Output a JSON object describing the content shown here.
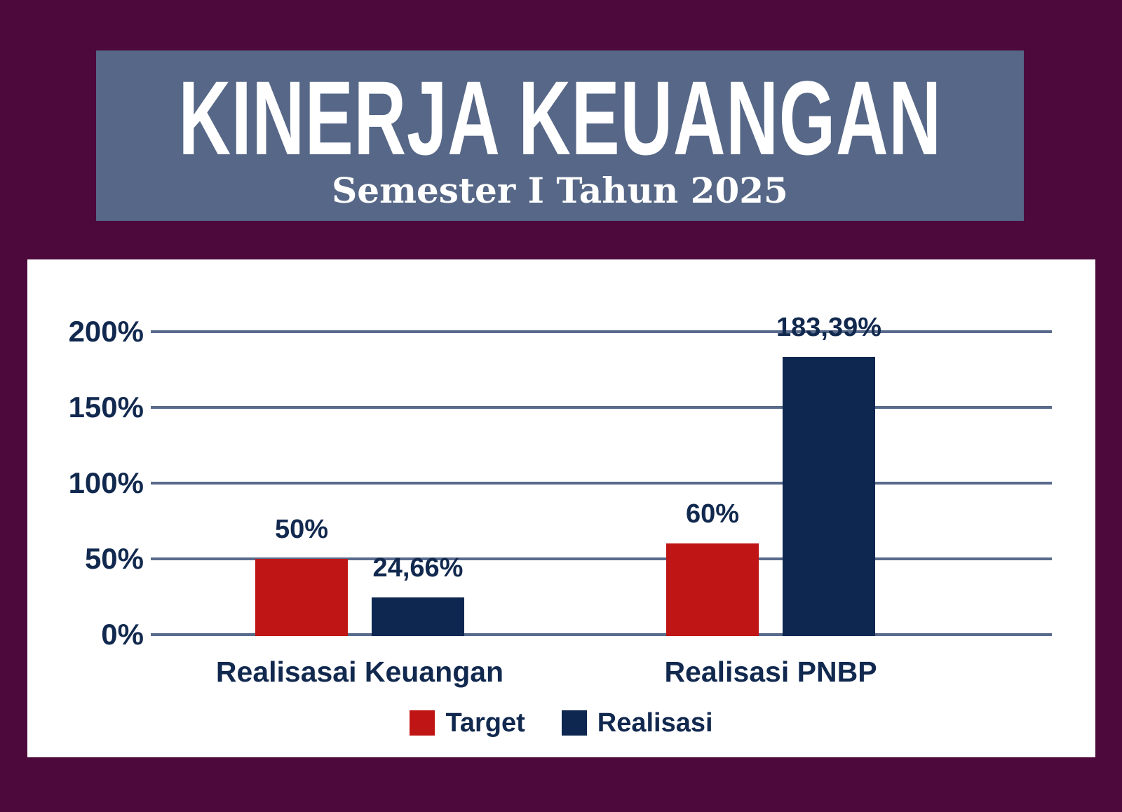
{
  "colors": {
    "background": "#4D093C",
    "banner": "#566787",
    "panel": "#FFFFFF",
    "gridline": "#596B8C",
    "text_navy": "#12294F",
    "target_red": "#C01515",
    "realisasi_navy": "#0D2750"
  },
  "chart_data": {
    "type": "bar",
    "title": "KINERJA KEUANGAN",
    "subtitle": "Semester I Tahun 2025",
    "categories": [
      "Realisasai Keuangan",
      "Realisasi PNBP"
    ],
    "series": [
      {
        "name": "Target",
        "color": "#C01515",
        "values": [
          50,
          60
        ],
        "labels": [
          "50%",
          "60%"
        ]
      },
      {
        "name": "Realisasi",
        "color": "#0D2750",
        "values": [
          24.66,
          183.39
        ],
        "labels": [
          "24,66%",
          "183,39%"
        ]
      }
    ],
    "ylim": [
      0,
      200
    ],
    "yticks": [
      {
        "value": 0,
        "label": "0%"
      },
      {
        "value": 50,
        "label": "50%"
      },
      {
        "value": 100,
        "label": "100%"
      },
      {
        "value": 150,
        "label": "150%"
      },
      {
        "value": 200,
        "label": "200%"
      }
    ],
    "grid": true,
    "legend_position": "bottom"
  }
}
